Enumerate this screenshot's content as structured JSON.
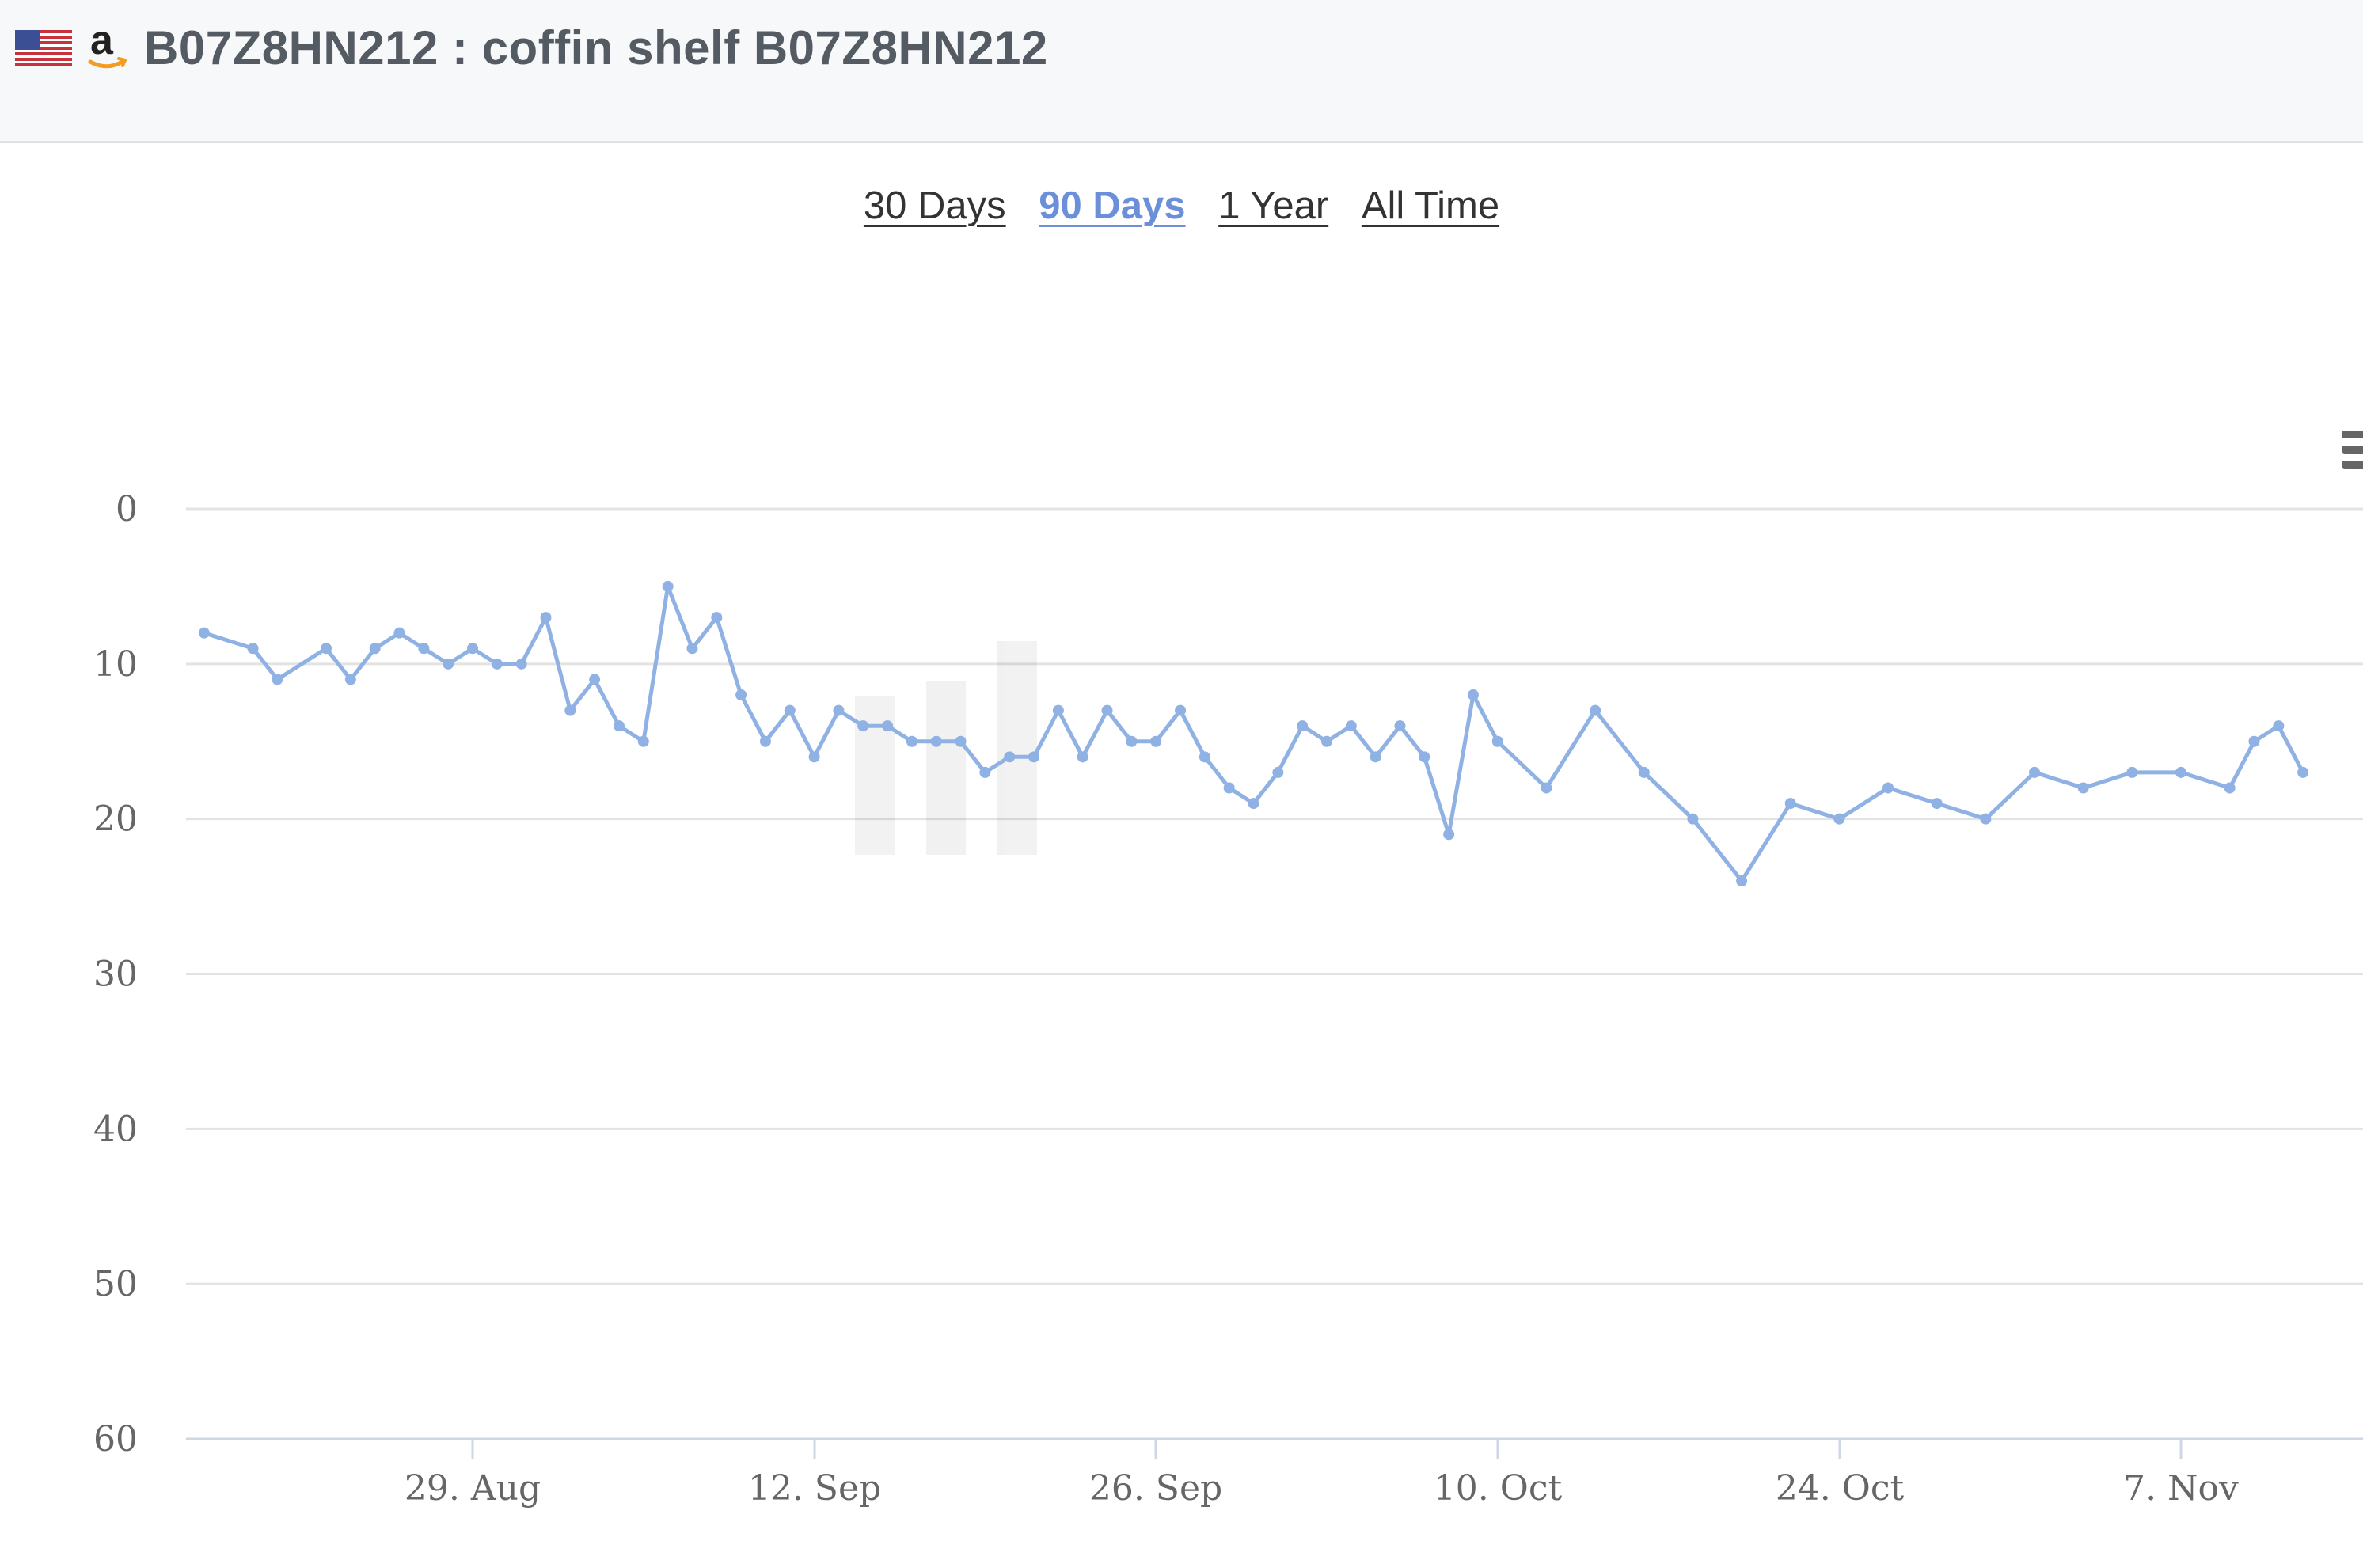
{
  "header": {
    "flag_icon": "us-flag-icon",
    "logo_icon": "amazon-logo-icon",
    "title": "B07Z8HN212 : coffin shelf B07Z8HN212"
  },
  "range_tabs": [
    {
      "label": "30 Days",
      "active": false
    },
    {
      "label": "90 Days",
      "active": true
    },
    {
      "label": "1 Year",
      "active": false
    },
    {
      "label": "All Time",
      "active": false
    }
  ],
  "colors": {
    "series": "#8fb1e4",
    "active_tab": "#6b8fd8",
    "grid": "#e3e3e3"
  },
  "chart_data": {
    "type": "line",
    "title": "",
    "xlabel": "",
    "ylabel": "",
    "y_reversed": true,
    "ylim": [
      0,
      60
    ],
    "y_ticks": [
      0,
      10,
      20,
      30,
      40,
      50,
      60
    ],
    "x_ticks": [
      "29. Aug",
      "12. Sep",
      "26. Sep",
      "10. Oct",
      "24. Oct",
      "7. Nov"
    ],
    "grid": true,
    "legend": "none",
    "series": [
      {
        "values_by_date": [
          [
            "2020-08-18",
            8
          ],
          [
            "2020-08-20",
            9
          ],
          [
            "2020-08-21",
            11
          ],
          [
            "2020-08-23",
            9
          ],
          [
            "2020-08-24",
            11
          ],
          [
            "2020-08-25",
            9
          ],
          [
            "2020-08-26",
            8
          ],
          [
            "2020-08-27",
            9
          ],
          [
            "2020-08-28",
            10
          ],
          [
            "2020-08-29",
            9
          ],
          [
            "2020-08-30",
            10
          ],
          [
            "2020-08-31",
            10
          ],
          [
            "2020-09-01",
            7
          ],
          [
            "2020-09-02",
            13
          ],
          [
            "2020-09-03",
            11
          ],
          [
            "2020-09-04",
            14
          ],
          [
            "2020-09-05",
            15
          ],
          [
            "2020-09-06",
            5
          ],
          [
            "2020-09-07",
            9
          ],
          [
            "2020-09-08",
            7
          ],
          [
            "2020-09-09",
            12
          ],
          [
            "2020-09-10",
            15
          ],
          [
            "2020-09-11",
            13
          ],
          [
            "2020-09-12",
            16
          ],
          [
            "2020-09-13",
            13
          ],
          [
            "2020-09-14",
            14
          ],
          [
            "2020-09-15",
            14
          ],
          [
            "2020-09-16",
            15
          ],
          [
            "2020-09-17",
            15
          ],
          [
            "2020-09-18",
            15
          ],
          [
            "2020-09-19",
            17
          ],
          [
            "2020-09-20",
            16
          ],
          [
            "2020-09-21",
            16
          ],
          [
            "2020-09-22",
            13
          ],
          [
            "2020-09-23",
            16
          ],
          [
            "2020-09-24",
            13
          ],
          [
            "2020-09-25",
            15
          ],
          [
            "2020-09-26",
            15
          ],
          [
            "2020-09-27",
            13
          ],
          [
            "2020-09-28",
            16
          ],
          [
            "2020-09-29",
            18
          ],
          [
            "2020-09-30",
            19
          ],
          [
            "2020-10-01",
            17
          ],
          [
            "2020-10-02",
            14
          ],
          [
            "2020-10-03",
            15
          ],
          [
            "2020-10-04",
            14
          ],
          [
            "2020-10-05",
            16
          ],
          [
            "2020-10-06",
            14
          ],
          [
            "2020-10-07",
            16
          ],
          [
            "2020-10-08",
            21
          ],
          [
            "2020-10-09",
            12
          ],
          [
            "2020-10-10",
            15
          ],
          [
            "2020-10-12",
            18
          ],
          [
            "2020-10-14",
            13
          ],
          [
            "2020-10-16",
            17
          ],
          [
            "2020-10-18",
            20
          ],
          [
            "2020-10-20",
            24
          ],
          [
            "2020-10-22",
            19
          ],
          [
            "2020-10-24",
            20
          ],
          [
            "2020-10-26",
            18
          ],
          [
            "2020-10-28",
            19
          ],
          [
            "2020-10-30",
            20
          ],
          [
            "2020-11-01",
            17
          ],
          [
            "2020-11-03",
            18
          ],
          [
            "2020-11-05",
            17
          ],
          [
            "2020-11-07",
            17
          ],
          [
            "2020-11-09",
            18
          ],
          [
            "2020-11-10",
            15
          ],
          [
            "2020-11-11",
            14
          ],
          [
            "2020-11-12",
            17
          ]
        ]
      }
    ]
  }
}
